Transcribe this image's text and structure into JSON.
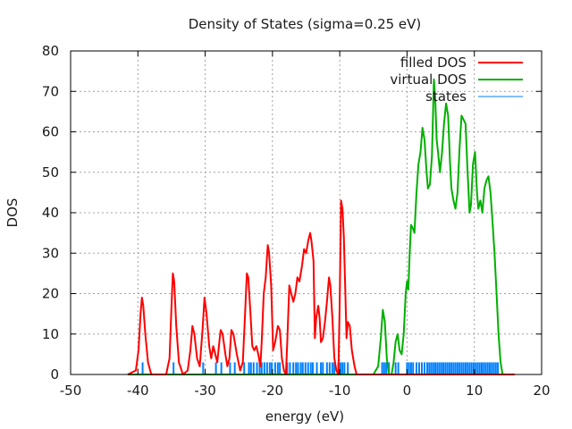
{
  "chart_data": {
    "type": "line",
    "title": "Density of States (sigma=0.25 eV)",
    "xlabel": "energy (eV)",
    "ylabel": "DOS",
    "xlim": [
      -50,
      20
    ],
    "ylim": [
      0,
      80
    ],
    "xticks": [
      -50,
      -40,
      -30,
      -20,
      -10,
      0,
      10,
      20
    ],
    "yticks": [
      0,
      10,
      20,
      30,
      40,
      50,
      60,
      70,
      80
    ],
    "xtick_labels": [
      "-50",
      "-40",
      "-30",
      "-20",
      "-10",
      "0",
      "10",
      "20"
    ],
    "ytick_labels": [
      "0",
      "10",
      "20",
      "30",
      "40",
      "50",
      "60",
      "70",
      "80"
    ],
    "grid": true,
    "legend_position": "top-right",
    "series": [
      {
        "name": "filled DOS",
        "color": "#ff0000",
        "x": [
          -41.5,
          -40.3,
          -39.9,
          -39.6,
          -39.4,
          -39.2,
          -38.9,
          -38.5,
          -38.0,
          -35.8,
          -35.3,
          -35.0,
          -34.8,
          -34.6,
          -34.3,
          -33.9,
          -33.3,
          -32.6,
          -32.2,
          -31.9,
          -31.6,
          -31.2,
          -30.8,
          -30.4,
          -30.1,
          -29.8,
          -29.4,
          -29.1,
          -28.8,
          -28.5,
          -28.2,
          -27.9,
          -27.7,
          -27.4,
          -27.0,
          -26.7,
          -26.4,
          -26.1,
          -25.8,
          -25.3,
          -24.8,
          -24.4,
          -24.1,
          -23.8,
          -23.6,
          -23.3,
          -23.0,
          -22.7,
          -22.4,
          -22.1,
          -21.8,
          -21.6,
          -21.3,
          -21.0,
          -20.7,
          -20.5,
          -20.2,
          -19.9,
          -19.6,
          -19.2,
          -18.9,
          -18.6,
          -18.3,
          -18.0,
          -17.8,
          -17.5,
          -17.2,
          -16.9,
          -16.6,
          -16.3,
          -16.0,
          -15.6,
          -15.3,
          -15.0,
          -14.7,
          -14.4,
          -14.2,
          -13.9,
          -13.7,
          -13.5,
          -13.2,
          -13.0,
          -12.8,
          -12.5,
          -12.2,
          -11.9,
          -11.6,
          -11.4,
          -11.1,
          -10.8,
          -10.5,
          -10.2,
          -10.0,
          -9.8,
          -9.6,
          -9.4,
          -9.2,
          -9.0,
          -8.8,
          -8.5,
          -8.2,
          -7.8,
          -7.5,
          -7.0,
          -4.0,
          -3.0,
          -1.5,
          0.0,
          5.0,
          10.0,
          15.0,
          16.0
        ],
        "y": [
          0,
          1,
          6,
          15,
          19,
          17,
          10,
          3,
          0,
          0,
          4,
          17,
          25,
          23,
          12,
          3,
          0,
          1,
          6,
          12,
          10,
          4,
          2,
          11,
          19,
          15,
          7,
          4,
          7,
          5,
          3,
          8,
          11,
          10,
          5,
          2,
          4,
          11,
          10,
          5,
          1,
          3,
          14,
          25,
          24,
          16,
          7,
          6,
          7,
          5,
          2,
          8,
          20,
          24,
          32,
          30,
          22,
          6,
          8,
          12,
          11,
          4,
          1,
          0,
          8,
          22,
          20,
          18,
          20,
          24,
          23,
          27,
          31,
          30,
          33,
          35,
          33,
          28,
          9,
          14,
          17,
          14,
          8,
          9,
          13,
          18,
          24,
          22,
          14,
          4,
          1,
          0,
          18,
          43,
          41,
          34,
          22,
          9,
          13,
          12,
          6,
          2,
          0,
          0,
          0,
          0,
          0,
          0,
          0,
          0,
          0,
          0
        ]
      },
      {
        "name": "virtual DOS",
        "color": "#00b000",
        "x": [
          -41.5,
          -5.0,
          -4.3,
          -3.9,
          -3.6,
          -3.3,
          -3.0,
          -2.7,
          -2.3,
          -2.0,
          -1.7,
          -1.4,
          -1.1,
          -0.8,
          -0.5,
          -0.2,
          0.0,
          0.2,
          0.4,
          0.6,
          0.9,
          1.1,
          1.4,
          1.7,
          2.0,
          2.3,
          2.6,
          2.9,
          3.1,
          3.4,
          3.7,
          4.0,
          4.2,
          4.4,
          4.6,
          4.9,
          5.2,
          5.5,
          5.8,
          6.1,
          6.4,
          6.6,
          6.9,
          7.2,
          7.5,
          7.8,
          8.1,
          8.4,
          8.7,
          9.0,
          9.3,
          9.5,
          9.8,
          10.1,
          10.4,
          10.6,
          10.9,
          11.2,
          11.5,
          11.8,
          12.1,
          12.4,
          12.7,
          13.0,
          13.3,
          13.6,
          13.9,
          14.2,
          14.6,
          15.0,
          16.0
        ],
        "y": [
          0,
          0,
          2,
          9,
          16,
          13,
          4,
          0,
          0,
          3,
          8,
          10,
          6,
          5,
          10,
          20,
          23,
          21,
          30,
          37,
          36,
          35,
          45,
          52,
          55,
          61,
          58,
          50,
          46,
          47,
          54,
          73,
          68,
          58,
          55,
          50,
          55,
          62,
          67,
          64,
          52,
          46,
          43,
          41,
          45,
          56,
          64,
          63,
          62,
          50,
          40,
          42,
          52,
          55,
          45,
          41,
          43,
          40,
          46,
          48,
          49,
          45,
          38,
          30,
          20,
          10,
          3,
          0,
          0,
          0,
          0
        ]
      },
      {
        "name": "states",
        "color": "#0080ff",
        "type": "impulses",
        "height": 3,
        "x": [
          -39.3,
          -34.7,
          -30.3,
          -28.4,
          -27.6,
          -26.3,
          -25.6,
          -24.2,
          -23.5,
          -23.2,
          -22.8,
          -22.3,
          -21.9,
          -21.6,
          -21.2,
          -20.8,
          -20.4,
          -20.1,
          -19.6,
          -19.2,
          -18.9,
          -17.8,
          -17.4,
          -16.9,
          -16.5,
          -16.2,
          -15.8,
          -15.5,
          -15.1,
          -14.7,
          -14.3,
          -14.0,
          -13.4,
          -12.8,
          -12.5,
          -11.9,
          -11.5,
          -11.1,
          -10.8,
          -10.2,
          -9.9,
          -9.6,
          -9.3,
          -8.8,
          -3.7,
          -3.4,
          -3.1,
          -2.7,
          -1.7,
          -1.3,
          0.0,
          0.3,
          0.6,
          0.9,
          1.4,
          1.8,
          2.2,
          2.6,
          3.0,
          3.3,
          3.6,
          3.9,
          4.2,
          4.5,
          4.8,
          5.1,
          5.4,
          5.7,
          6.0,
          6.3,
          6.6,
          6.9,
          7.2,
          7.5,
          7.8,
          8.1,
          8.4,
          8.7,
          9.0,
          9.3,
          9.6,
          9.9,
          10.2,
          10.5,
          10.8,
          11.1,
          11.4,
          11.7,
          12.0,
          12.3,
          12.6,
          12.9,
          13.2,
          13.5
        ]
      }
    ],
    "legend": [
      "filled DOS",
      "virtual DOS",
      "states"
    ]
  }
}
